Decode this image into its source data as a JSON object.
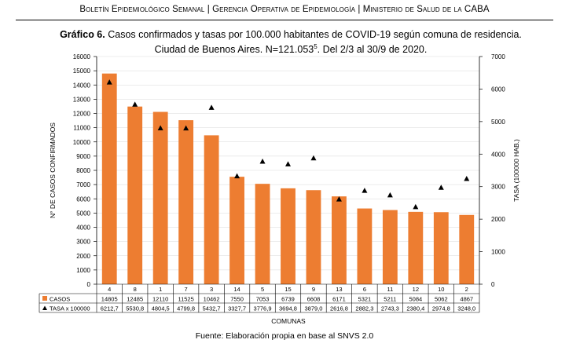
{
  "header": {
    "part1": "Boletín Epidemiológico Semanal",
    "sep": "|",
    "part2": "Gerencia Operativa de Epidemiología",
    "part3": "Ministerio de Salud de la CABA"
  },
  "title": {
    "label": "Gráfico 6.",
    "line1": "Casos confirmados y tasas por 100.000 habitantes de COVID-19 según comuna de residencia.",
    "line2": "Ciudad de Buenos Aires. N=121.053",
    "line2_sup": "5",
    "line2_end": ". Del 2/3 al 30/9 de 2020."
  },
  "source": "Fuente: Elaboración propia en base al SNVS 2.0",
  "colors": {
    "bars": "#ED7D31",
    "markers": "#000000",
    "grid": "#d9d9d9"
  },
  "chart_data": {
    "type": "bar",
    "categories": [
      "4",
      "8",
      "1",
      "7",
      "3",
      "14",
      "5",
      "15",
      "9",
      "13",
      "6",
      "11",
      "12",
      "10",
      "2"
    ],
    "series": [
      {
        "name": "CASOS",
        "type": "bar",
        "axis": "left",
        "values": [
          14805,
          12485,
          12110,
          11525,
          10462,
          7550,
          7053,
          6739,
          6608,
          6171,
          5321,
          5211,
          5084,
          5062,
          4867
        ],
        "labels": [
          "14805",
          "12485",
          "12110",
          "11525",
          "10462",
          "7550",
          "7053",
          "6739",
          "6608",
          "6171",
          "5321",
          "5211",
          "5084",
          "5062",
          "4867"
        ]
      },
      {
        "name": "TASA x 100000",
        "type": "marker",
        "axis": "right",
        "values": [
          6212.7,
          5530.8,
          4804.5,
          4799.8,
          5432.7,
          3327.7,
          3776.9,
          3694.8,
          3879.0,
          2616.8,
          2882.3,
          2743.3,
          2380.4,
          2974.8,
          3248.0
        ],
        "labels": [
          "6212,7",
          "5530,8",
          "4804,5",
          "4799,8",
          "5432,7",
          "3327,7",
          "3776,9",
          "3694,8",
          "3879,0",
          "2616,8",
          "2882,3",
          "2743,3",
          "2380,4",
          "2974,8",
          "3248,0"
        ]
      }
    ],
    "xlabel": "COMUNAS",
    "ylabel": "N° DE CASOS CONFIRMADOS",
    "y2label": "TASA (100000 HAB.)",
    "ylim": [
      0,
      16000
    ],
    "y2lim": [
      0,
      7000
    ],
    "yticks": [
      "0",
      "1000",
      "2000",
      "3000",
      "4000",
      "5000",
      "6000",
      "7000",
      "8000",
      "9000",
      "10000",
      "11000",
      "12000",
      "13000",
      "14000",
      "15000",
      "16000"
    ],
    "y2ticks": [
      "0",
      "1000",
      "2000",
      "3000",
      "4000",
      "5000",
      "6000",
      "7000"
    ],
    "grid": false,
    "legend": "data-table"
  }
}
